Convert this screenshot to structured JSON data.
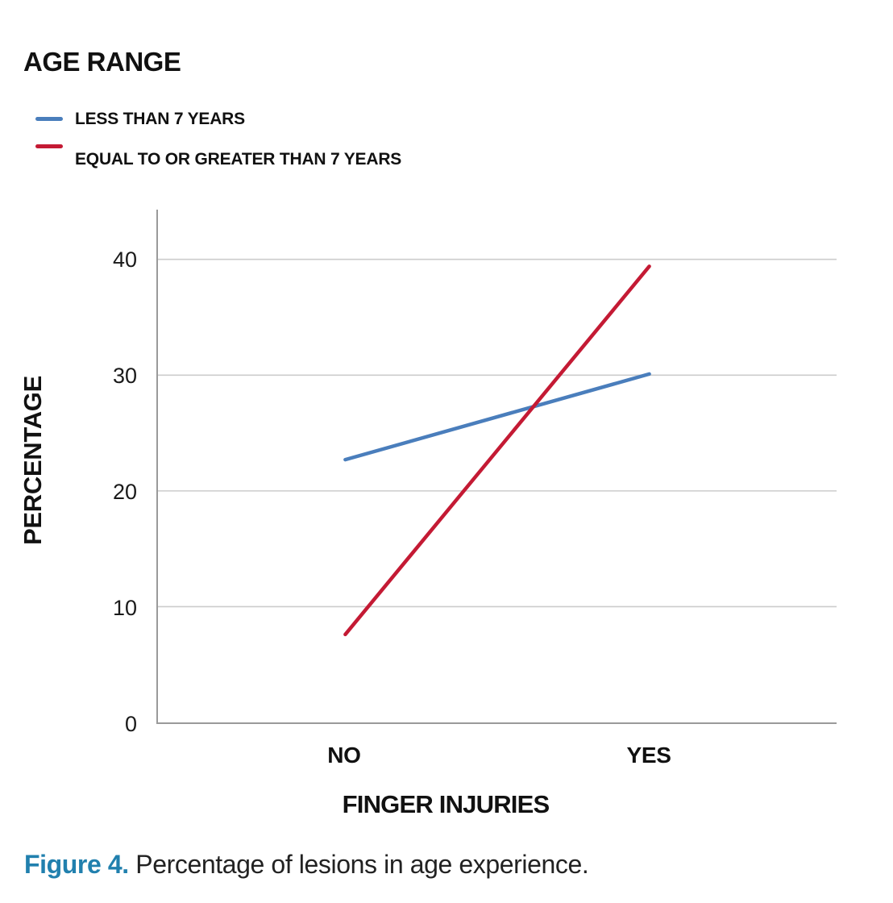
{
  "chart_data": {
    "type": "line",
    "legend_title": "AGE RANGE",
    "categories": [
      "NO",
      "YES"
    ],
    "series": [
      {
        "name": "LESS THAN 7 YEARS",
        "color": "#4a7ebc",
        "values": [
          22.7,
          30.1
        ]
      },
      {
        "name": "EQUAL TO OR GREATER THAN 7 YEARS",
        "color": "#c41a34",
        "values": [
          7.6,
          39.4
        ]
      }
    ],
    "xlabel": "FINGER INJURIES",
    "ylabel": "PERCENTAGE",
    "yticks": [
      0,
      10,
      20,
      30,
      40
    ],
    "ylim": [
      0,
      44.3
    ],
    "grid": "horizontal-only",
    "legend_position": "top-left"
  },
  "caption": {
    "label": "Figure 4.",
    "text": "Percentage of lesions in age experience."
  },
  "colors": {
    "caption_label": "#2180ae",
    "gridline": "#cccccc",
    "axis": "#9a9a9a",
    "text": "#1a1a1a"
  }
}
